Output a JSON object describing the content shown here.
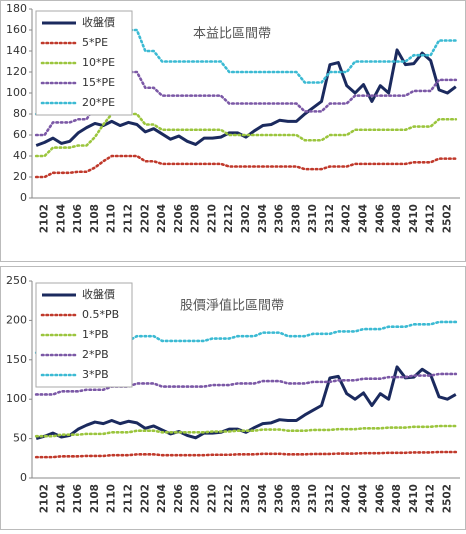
{
  "chart_data": [
    {
      "type": "line",
      "title": "本益比區間帶",
      "categories": [
        null,
        "2102",
        null,
        "2104",
        null,
        "2106",
        null,
        "2108",
        null,
        "2110",
        null,
        "2112",
        null,
        "2202",
        null,
        "2204",
        null,
        "2206",
        null,
        "2208",
        null,
        "2210",
        null,
        "2212",
        null,
        "2302",
        null,
        "2304",
        null,
        "2306",
        null,
        "2308",
        null,
        "2310",
        null,
        "2312",
        null,
        "2402",
        null,
        "2404",
        null,
        "2406",
        null,
        "2408",
        null,
        "2410",
        null,
        "2412",
        null,
        "2502",
        null
      ],
      "ylim": [
        0,
        180
      ],
      "yticks": [
        0,
        20,
        40,
        60,
        80,
        100,
        120,
        140,
        160,
        180
      ],
      "grid": false,
      "legend": "upper left",
      "series": [
        {
          "name": "收盤價",
          "color": "#1b2a5e",
          "line_style": "solid",
          "values": [
            50,
            53,
            57,
            52,
            54,
            62,
            67,
            71,
            69,
            73,
            69,
            72,
            70,
            63,
            66,
            61,
            56,
            59,
            54,
            51,
            57,
            57,
            58,
            62,
            62,
            58,
            64,
            69,
            70,
            74,
            73,
            73,
            80,
            86,
            92,
            127,
            129,
            107,
            100,
            108,
            92,
            107,
            100,
            141,
            127,
            128,
            138,
            131,
            103,
            100,
            106
          ]
        },
        {
          "name": "5*PE",
          "color": "#c0392b",
          "line_style": "dotted",
          "values": [
            20,
            20,
            24,
            24,
            24,
            25,
            25,
            29,
            35,
            40,
            40,
            40,
            40,
            35,
            35,
            32.5,
            32.5,
            32.5,
            32.5,
            32.5,
            32.5,
            32.5,
            32.5,
            30,
            30,
            30,
            30,
            30,
            30,
            30,
            30,
            30,
            27.5,
            27.5,
            27.5,
            30,
            30,
            30,
            32.5,
            32.5,
            32.5,
            32.5,
            32.5,
            32.5,
            32.5,
            34,
            34,
            34,
            37.5,
            37.5,
            37.5
          ]
        },
        {
          "name": "10*PE",
          "color": "#9bc53d",
          "line_style": "dotted",
          "values": [
            40,
            40,
            48,
            48,
            48,
            50,
            50,
            58,
            70,
            80,
            80,
            80,
            80,
            70,
            70,
            65,
            65,
            65,
            65,
            65,
            65,
            65,
            65,
            60,
            60,
            60,
            60,
            60,
            60,
            60,
            60,
            60,
            55,
            55,
            55,
            60,
            60,
            60,
            65,
            65,
            65,
            65,
            65,
            65,
            65,
            68,
            68,
            68,
            75,
            75,
            75
          ]
        },
        {
          "name": "15*PE",
          "color": "#7b58a6",
          "line_style": "dotted",
          "values": [
            60,
            60,
            72,
            72,
            72,
            75,
            75,
            87,
            105,
            120,
            120,
            120,
            120,
            105,
            105,
            97.5,
            97.5,
            97.5,
            97.5,
            97.5,
            97.5,
            97.5,
            97.5,
            90,
            90,
            90,
            90,
            90,
            90,
            90,
            90,
            90,
            82.5,
            82.5,
            82.5,
            90,
            90,
            90,
            97.5,
            97.5,
            97.5,
            97.5,
            97.5,
            97.5,
            97.5,
            102,
            102,
            102,
            112.5,
            112.5,
            112.5
          ]
        },
        {
          "name": "20*PE",
          "color": "#3bbad3",
          "line_style": "dotted",
          "values": [
            80,
            80,
            96,
            96,
            96,
            100,
            100,
            116,
            140,
            160,
            160,
            160,
            160,
            140,
            140,
            130,
            130,
            130,
            130,
            130,
            130,
            130,
            130,
            120,
            120,
            120,
            120,
            120,
            120,
            120,
            120,
            120,
            110,
            110,
            110,
            120,
            120,
            120,
            130,
            130,
            130,
            130,
            130,
            130,
            130,
            136,
            136,
            136,
            150,
            150,
            150
          ]
        }
      ]
    },
    {
      "type": "line",
      "title": "股價淨值比區間帶",
      "categories": [
        null,
        "2102",
        null,
        "2104",
        null,
        "2106",
        null,
        "2108",
        null,
        "2110",
        null,
        "2112",
        null,
        "2202",
        null,
        "2204",
        null,
        "2206",
        null,
        "2208",
        null,
        "2210",
        null,
        "2212",
        null,
        "2302",
        null,
        "2304",
        null,
        "2306",
        null,
        "2308",
        null,
        "2310",
        null,
        "2312",
        null,
        "2402",
        null,
        "2404",
        null,
        "2406",
        null,
        "2408",
        null,
        "2410",
        null,
        "2412",
        null,
        "2502",
        null
      ],
      "ylim": [
        0,
        250
      ],
      "yticks": [
        0,
        50,
        100,
        150,
        200,
        250
      ],
      "grid": false,
      "legend": "upper left",
      "series": [
        {
          "name": "收盤價",
          "color": "#1b2a5e",
          "line_style": "solid",
          "values": [
            50,
            53,
            57,
            52,
            54,
            62,
            67,
            71,
            69,
            73,
            69,
            72,
            70,
            63,
            66,
            61,
            56,
            59,
            54,
            51,
            57,
            57,
            58,
            62,
            62,
            58,
            64,
            69,
            70,
            74,
            73,
            73,
            80,
            86,
            92,
            127,
            129,
            107,
            100,
            108,
            92,
            107,
            100,
            141,
            127,
            128,
            138,
            131,
            103,
            100,
            106
          ]
        },
        {
          "name": "0.5*PB",
          "color": "#c0392b",
          "line_style": "dotted",
          "values": [
            26.5,
            26.5,
            26.5,
            27.5,
            27.5,
            27.5,
            28,
            28,
            28,
            29,
            29,
            29,
            30,
            30,
            30,
            29,
            29,
            29,
            29,
            29,
            29,
            29.5,
            29.5,
            29.5,
            30,
            30,
            30,
            30.75,
            30.75,
            30.75,
            30,
            30,
            30,
            30.5,
            30.5,
            30.5,
            31,
            31,
            31,
            31.5,
            31.5,
            31.5,
            32,
            32,
            32,
            32.5,
            32.5,
            32.5,
            33,
            33,
            33
          ]
        },
        {
          "name": "1*PB",
          "color": "#9bc53d",
          "line_style": "dotted",
          "values": [
            53,
            53,
            53,
            55,
            55,
            55,
            56,
            56,
            56,
            58,
            58,
            58,
            60,
            60,
            60,
            58,
            58,
            58,
            58,
            58,
            58,
            59,
            59,
            59,
            60,
            60,
            60,
            61.5,
            61.5,
            61.5,
            60,
            60,
            60,
            61,
            61,
            61,
            62,
            62,
            62,
            63,
            63,
            63,
            64,
            64,
            64,
            65,
            65,
            65,
            66,
            66,
            66
          ]
        },
        {
          "name": "2*PB",
          "color": "#7b58a6",
          "line_style": "dotted",
          "values": [
            106,
            106,
            106,
            110,
            110,
            110,
            112,
            112,
            112,
            116,
            116,
            116,
            120,
            120,
            120,
            116,
            116,
            116,
            116,
            116,
            116,
            118,
            118,
            118,
            120,
            120,
            120,
            123,
            123,
            123,
            120,
            120,
            120,
            122,
            122,
            122,
            124,
            124,
            124,
            126,
            126,
            126,
            128,
            128,
            128,
            130,
            130,
            130,
            132,
            132,
            132
          ]
        },
        {
          "name": "3*PB",
          "color": "#3bbad3",
          "line_style": "dotted",
          "values": [
            159,
            159,
            159,
            165,
            165,
            165,
            168,
            168,
            168,
            174,
            174,
            174,
            180,
            180,
            180,
            174,
            174,
            174,
            174,
            174,
            174,
            177,
            177,
            177,
            180,
            180,
            180,
            184.5,
            184.5,
            184.5,
            180,
            180,
            180,
            183,
            183,
            183,
            186,
            186,
            186,
            189,
            189,
            189,
            192,
            192,
            192,
            195,
            195,
            195,
            198,
            198,
            198
          ]
        }
      ]
    }
  ]
}
